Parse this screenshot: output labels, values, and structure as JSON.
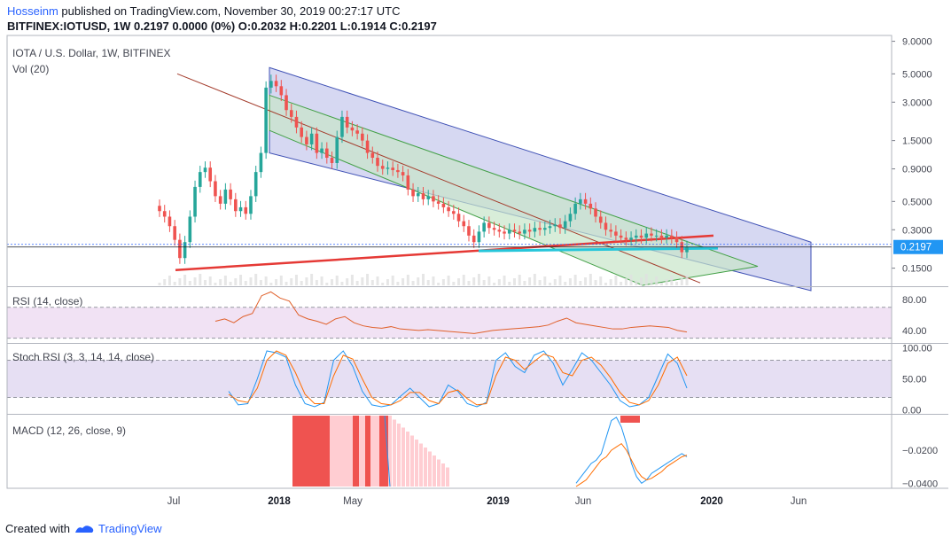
{
  "header": {
    "author": "Hosseinm",
    "published_text": "published on TradingView.com, November 30, 2019 00:27:17 UTC",
    "symbol_line": "BITFINEX:IOTUSD, 1W  0.2197 0.0000 (0%) O:0.2032 H:0.2201 L:0.1914 C:0.2197"
  },
  "footer": {
    "created_with": "Created with",
    "brand": "TradingView"
  },
  "colors": {
    "up": "#26a69a",
    "down": "#ef5350",
    "rsi": "#e0602a",
    "stoch_k": "#2196f3",
    "stoch_d": "#ff6d00",
    "macd": "#2196f3",
    "signal": "#ff6d00",
    "channel_outer": "#b4b8e8",
    "channel_inner": "#c8e6c9"
  },
  "chart_data": [
    {
      "type": "candlestick",
      "title": "IOTA / U.S. Dollar, 1W, BITFINEX",
      "indicator_label": "Vol (20)",
      "scale": "log",
      "y_ticks": [
        "9.0000",
        "5.0000",
        "3.0000",
        "1.5000",
        "0.9000",
        "0.5000",
        "0.3000",
        "0.1500"
      ],
      "y_tick_values": [
        9,
        5,
        3,
        1.5,
        0.9,
        0.5,
        0.3,
        0.15
      ],
      "ylim": [
        0.11,
        10
      ],
      "last_price_label": "0.2197",
      "last_price": 0.2197,
      "x_ticks": [
        "Jul",
        "2018",
        "May",
        "2019",
        "Jun",
        "2020",
        "Jun"
      ],
      "series": [
        {
          "name": "IOTUSD",
          "close": [
            0.42,
            0.38,
            0.32,
            0.25,
            0.18,
            0.24,
            0.38,
            0.65,
            0.85,
            0.92,
            0.72,
            0.55,
            0.48,
            0.62,
            0.52,
            0.42,
            0.45,
            0.4,
            0.55,
            0.85,
            1.2,
            3.9,
            4.4,
            4.0,
            3.4,
            2.6,
            2.3,
            1.9,
            1.6,
            1.4,
            1.7,
            1.2,
            1.3,
            1.1,
            1.0,
            1.6,
            2.3,
            1.9,
            1.8,
            1.7,
            1.5,
            1.2,
            1.1,
            0.95,
            0.9,
            0.92,
            0.88,
            0.85,
            0.8,
            0.62,
            0.55,
            0.58,
            0.52,
            0.55,
            0.5,
            0.48,
            0.45,
            0.42,
            0.4,
            0.35,
            0.32,
            0.27,
            0.24,
            0.29,
            0.34,
            0.31,
            0.3,
            0.29,
            0.28,
            0.3,
            0.29,
            0.28,
            0.3,
            0.29,
            0.31,
            0.3,
            0.31,
            0.32,
            0.33,
            0.31,
            0.35,
            0.4,
            0.48,
            0.52,
            0.48,
            0.44,
            0.38,
            0.34,
            0.3,
            0.29,
            0.27,
            0.26,
            0.25,
            0.26,
            0.27,
            0.26,
            0.28,
            0.27,
            0.27,
            0.26,
            0.27,
            0.26,
            0.24,
            0.2,
            0.22
          ]
        }
      ],
      "overlays": [
        "regression channel (outer)",
        "regression channel (inner)",
        "trendline support",
        "horizontal support"
      ]
    },
    {
      "type": "line",
      "title": "RSI (14, close)",
      "y_ticks": [
        "80.00",
        "40.00"
      ],
      "ylim": [
        25,
        95
      ],
      "bands": [
        70,
        30
      ],
      "series": [
        {
          "name": "RSI",
          "values": [
            52,
            55,
            50,
            58,
            62,
            85,
            90,
            82,
            78,
            60,
            55,
            52,
            48,
            55,
            58,
            50,
            46,
            44,
            43,
            45,
            42,
            41,
            40,
            41,
            40,
            39,
            38,
            37,
            36,
            38,
            40,
            41,
            42,
            43,
            44,
            45,
            47,
            52,
            56,
            50,
            48,
            46,
            44,
            42,
            42,
            44,
            45,
            46,
            45,
            44,
            40,
            38
          ]
        }
      ]
    },
    {
      "type": "line",
      "title": "Stoch RSI (3, 3, 14, 14, close)",
      "y_ticks": [
        "100.00",
        "50.00",
        "0.00"
      ],
      "ylim": [
        -5,
        105
      ],
      "bands": [
        80,
        20
      ],
      "series": [
        {
          "name": "K",
          "values": [
            30,
            8,
            10,
            50,
            95,
            92,
            85,
            40,
            10,
            5,
            12,
            80,
            95,
            70,
            30,
            8,
            5,
            8,
            22,
            35,
            20,
            5,
            10,
            40,
            30,
            10,
            5,
            12,
            80,
            92,
            70,
            60,
            88,
            95,
            75,
            40,
            65,
            92,
            80,
            60,
            40,
            15,
            5,
            8,
            20,
            55,
            90,
            75,
            35
          ]
        },
        {
          "name": "D",
          "values": [
            25,
            15,
            12,
            35,
            80,
            95,
            88,
            60,
            25,
            10,
            10,
            55,
            88,
            82,
            50,
            20,
            10,
            8,
            15,
            28,
            28,
            15,
            10,
            28,
            32,
            18,
            8,
            10,
            55,
            85,
            80,
            65,
            78,
            90,
            85,
            60,
            55,
            80,
            85,
            72,
            52,
            28,
            12,
            8,
            15,
            40,
            75,
            85,
            55
          ]
        }
      ]
    },
    {
      "type": "bar",
      "title": "MACD (12, 26, close, 9)",
      "y_ticks": [
        "−0.0200",
        "−0.0400"
      ],
      "ylim": [
        -0.042,
        0.001
      ],
      "series": [
        {
          "name": "MACD",
          "values": [
            -0.04,
            -0.036,
            -0.032,
            -0.028,
            -0.026,
            -0.022,
            -0.012,
            -0.002,
            0.0,
            -0.006,
            -0.016,
            -0.028,
            -0.036,
            -0.04,
            -0.038,
            -0.034,
            -0.032,
            -0.03,
            -0.028,
            -0.026,
            -0.024,
            -0.022,
            -0.024
          ]
        },
        {
          "name": "Signal",
          "values": [
            -0.042,
            -0.04,
            -0.038,
            -0.034,
            -0.03,
            -0.026,
            -0.024,
            -0.02,
            -0.018,
            -0.016,
            -0.02,
            -0.026,
            -0.032,
            -0.036,
            -0.038,
            -0.037,
            -0.035,
            -0.033,
            -0.03,
            -0.028,
            -0.026,
            -0.024,
            -0.023
          ]
        }
      ]
    }
  ]
}
